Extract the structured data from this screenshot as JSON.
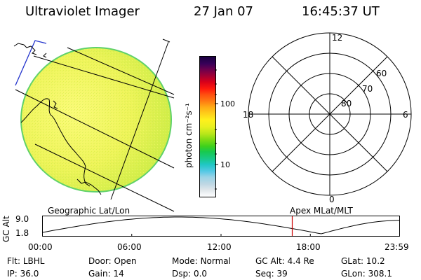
{
  "header": {
    "instrument": "Ultraviolet Imager",
    "date": "27 Jan 07",
    "time": "16:45:37 UT"
  },
  "colorbar": {
    "unit_label": "photon cm⁻²s⁻¹",
    "ticks": [
      "100",
      "10"
    ],
    "colors": [
      "#ffffff",
      "#dfe6ea",
      "#bfd7e4",
      "#9ad3e6",
      "#57c8e6",
      "#1fc7c4",
      "#19c98a",
      "#17c951",
      "#3fd11c",
      "#82dc14",
      "#b9e71a",
      "#e9f01f",
      "#fff01c",
      "#ffd11a",
      "#ffab15",
      "#ff7d12",
      "#ff4e10",
      "#ff1a0c",
      "#d8001a",
      "#a60033",
      "#6a004f",
      "#380059",
      "#1a0040"
    ]
  },
  "polar_plot": {
    "mlt_labels": {
      "top": "12",
      "left": "18",
      "right": "6",
      "bottom": "0"
    },
    "lat_labels": [
      "60",
      "70",
      "80"
    ]
  },
  "timeline": {
    "y_axis_label": "GC Alt",
    "y_ticks": [
      "9.0",
      "1.8"
    ],
    "left_title": "Geographic Lat/Lon",
    "right_title": "Apex MLat/MLT",
    "x_ticks": [
      "00:00",
      "06:00",
      "12:00",
      "18:00",
      "23:59"
    ],
    "current_time_fraction": 0.699
  },
  "status": {
    "row1": [
      {
        "label": "Flt:",
        "value": "LBHL"
      },
      {
        "label": "Door:",
        "value": "Open"
      },
      {
        "label": "Mode:",
        "value": "Normal"
      },
      {
        "label": "GC Alt:",
        "value": "4.4 Re"
      },
      {
        "label": "GLat:",
        "value": "10.2"
      }
    ],
    "row2": [
      {
        "label": "IP:",
        "value": "36.0"
      },
      {
        "label": "Gain:",
        "value": "14"
      },
      {
        "label": "Dsp:",
        "value": "0.0"
      },
      {
        "label": "Seq:",
        "value": "39"
      },
      {
        "label": "GLon:",
        "value": "308.1"
      }
    ]
  },
  "colors": {
    "earth_fill": "#e8f24a",
    "earth_edge": "#7fd24a",
    "marker": "#cc0000"
  }
}
